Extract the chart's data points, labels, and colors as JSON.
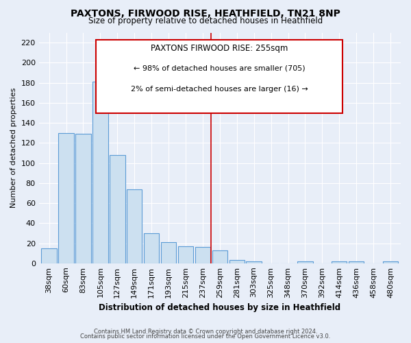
{
  "title": "PAXTONS, FIRWOOD RISE, HEATHFIELD, TN21 8NP",
  "subtitle": "Size of property relative to detached houses in Heathfield",
  "xlabel": "Distribution of detached houses by size in Heathfield",
  "ylabel": "Number of detached properties",
  "bar_labels": [
    "38sqm",
    "60sqm",
    "83sqm",
    "105sqm",
    "127sqm",
    "149sqm",
    "171sqm",
    "193sqm",
    "215sqm",
    "237sqm",
    "259sqm",
    "281sqm",
    "303sqm",
    "325sqm",
    "348sqm",
    "370sqm",
    "392sqm",
    "414sqm",
    "436sqm",
    "458sqm",
    "480sqm"
  ],
  "bar_heights": [
    15,
    130,
    129,
    181,
    108,
    74,
    30,
    21,
    17,
    16,
    13,
    3,
    2,
    0,
    0,
    2,
    0,
    2,
    2,
    0,
    2
  ],
  "bar_face_color": "#cce0f0",
  "bar_edge_color": "#5b9bd5",
  "property_line_idx": 10,
  "annotation_title": "PAXTONS FIRWOOD RISE: 255sqm",
  "annotation_line1": "← 98% of detached houses are smaller (705)",
  "annotation_line2": "2% of semi-detached houses are larger (16) →",
  "footer1": "Contains HM Land Registry data © Crown copyright and database right 2024.",
  "footer2": "Contains public sector information licensed under the Open Government Licence v3.0.",
  "ylim": [
    0,
    230
  ],
  "yticks": [
    0,
    20,
    40,
    60,
    80,
    100,
    120,
    140,
    160,
    180,
    200,
    220
  ],
  "background_color": "#e8eef8",
  "grid_color": "#ffffff",
  "red_line_color": "#cc0000",
  "annotation_box_color": "#ffffff",
  "annotation_border_color": "#cc0000"
}
